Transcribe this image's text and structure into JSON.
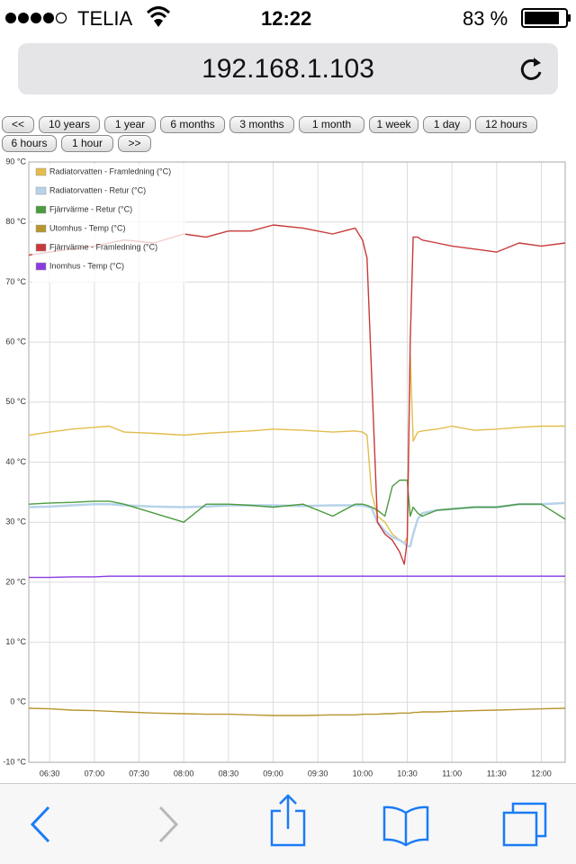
{
  "status_bar": {
    "carrier": "TELIA",
    "time": "12:22",
    "battery": "83 %"
  },
  "address_bar": {
    "url": "192.168.1.103"
  },
  "range_buttons": [
    "<<",
    "10 years",
    "1 year",
    "6 months",
    "3 months",
    "1 month",
    "1 week",
    "1 day",
    "12 hours",
    "6 hours",
    "1 hour",
    ">>"
  ],
  "chart_data": {
    "type": "line",
    "x": [
      "06:16",
      "06:30",
      "06:45",
      "07:00",
      "07:10",
      "07:20",
      "07:40",
      "08:00",
      "08:15",
      "08:30",
      "08:45",
      "09:00",
      "09:20",
      "09:40",
      "09:55",
      "10:00",
      "10:03",
      "10:06",
      "10:10",
      "10:15",
      "10:20",
      "10:25",
      "10:28",
      "10:30",
      "10:32",
      "10:34",
      "10:37",
      "10:40",
      "10:50",
      "11:00",
      "11:15",
      "11:30",
      "11:45",
      "12:00",
      "12:16"
    ],
    "xlim": [
      "06:16",
      "12:16"
    ],
    "xticks": [
      "06:30",
      "07:00",
      "07:30",
      "08:00",
      "08:30",
      "09:00",
      "09:30",
      "10:00",
      "10:30",
      "11:00",
      "11:30",
      "12:00"
    ],
    "ylim": [
      -10,
      90
    ],
    "yticks": [
      {
        "value": -10,
        "label": "-10 °C"
      },
      {
        "value": 0,
        "label": "0 °C"
      },
      {
        "value": 10,
        "label": "10 °C"
      },
      {
        "value": 20,
        "label": "20 °C"
      },
      {
        "value": 30,
        "label": "30 °C"
      },
      {
        "value": 40,
        "label": "40 °C"
      },
      {
        "value": 50,
        "label": "50 °C"
      },
      {
        "value": 60,
        "label": "60 °C"
      },
      {
        "value": 70,
        "label": "70 °C"
      },
      {
        "value": 80,
        "label": "80 °C"
      },
      {
        "value": 90,
        "label": "90 °C"
      }
    ],
    "grid": true,
    "legend": "top-left",
    "series": [
      {
        "name": "Radiatorvatten - Framledning (°C)",
        "color": "#e3bd4c",
        "values": [
          44.5,
          45,
          45.5,
          45.8,
          46,
          45,
          44.8,
          44.5,
          44.8,
          45,
          45.2,
          45.5,
          45.3,
          45,
          45.2,
          45,
          44.5,
          35,
          31,
          30,
          28,
          27,
          26.5,
          27.5,
          58,
          43.5,
          45,
          45.2,
          45.5,
          46,
          45.3,
          45.5,
          45.8,
          46,
          46
        ]
      },
      {
        "name": "Radiatorvatten - Retur (°C)",
        "color": "#b7d3ea",
        "values": [
          32.5,
          32.6,
          32.8,
          33,
          33,
          32.8,
          32.6,
          32.5,
          32.6,
          32.8,
          32.8,
          32.8,
          32.7,
          32.8,
          32.8,
          32.8,
          32.6,
          32.4,
          30,
          28.5,
          27.5,
          27,
          26.5,
          26,
          26,
          28,
          30.5,
          31.5,
          32,
          32.2,
          32.5,
          32.5,
          33,
          33,
          33.2
        ]
      },
      {
        "name": "Fjärrvärme - Retur (°C)",
        "color": "#4b9b3f",
        "values": [
          33,
          33.2,
          33.3,
          33.5,
          33.5,
          33,
          31.5,
          30,
          33,
          33,
          32.8,
          32.5,
          33,
          31,
          33,
          33,
          32.8,
          32.5,
          32,
          31,
          36,
          37,
          37,
          37,
          31,
          32.5,
          31.5,
          31,
          32,
          32.2,
          32.5,
          32.5,
          33,
          33,
          30.5
        ]
      },
      {
        "name": "Utomhus - Temp (°C)",
        "color": "#b8962e",
        "values": [
          -1,
          -1.1,
          -1.3,
          -1.4,
          -1.5,
          -1.6,
          -1.8,
          -1.9,
          -2,
          -2,
          -2.1,
          -2.2,
          -2.2,
          -2.1,
          -2.1,
          -2,
          -2,
          -2,
          -2,
          -1.9,
          -1.9,
          -1.8,
          -1.8,
          -1.8,
          -1.8,
          -1.7,
          -1.7,
          -1.6,
          -1.6,
          -1.5,
          -1.4,
          -1.3,
          -1.2,
          -1.1,
          -1
        ]
      },
      {
        "name": "Fjärrvärme - Framledning (°C)",
        "color": "#c83a3a",
        "values": [
          74.5,
          75,
          75.5,
          76,
          76.5,
          77,
          76.5,
          78,
          77.5,
          78.5,
          78.5,
          79.5,
          79,
          78,
          79,
          77,
          74,
          55,
          30,
          28,
          27,
          25,
          23,
          27,
          60,
          77.5,
          77.5,
          77,
          76.5,
          76,
          75.5,
          75,
          76.5,
          76,
          76.5
        ]
      },
      {
        "name": "Inomhus - Temp (°C)",
        "color": "#8a3ae0",
        "values": [
          20.8,
          20.8,
          20.9,
          20.9,
          21,
          21,
          21,
          21,
          21,
          21,
          21,
          21,
          21,
          21,
          21,
          21,
          21,
          21,
          21,
          21,
          21,
          21,
          21,
          21,
          21,
          21,
          21,
          21,
          21,
          21,
          21,
          21,
          21,
          21,
          21
        ]
      }
    ]
  }
}
